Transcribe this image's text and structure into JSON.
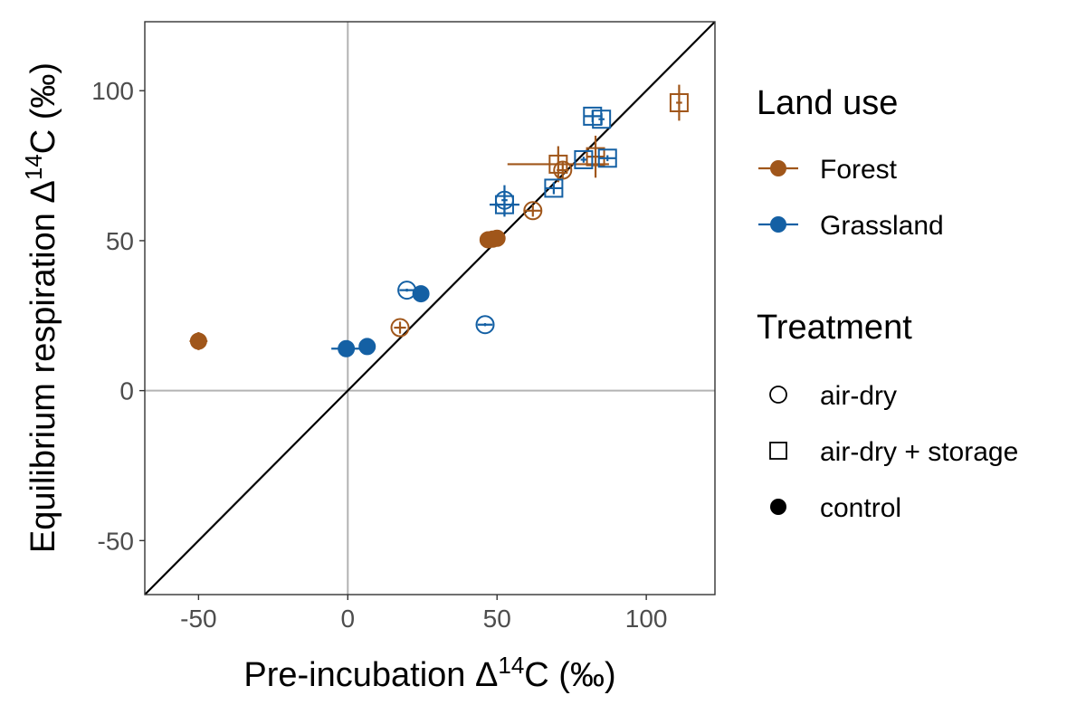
{
  "chart_data": {
    "type": "scatter",
    "xlabel": "Pre-incubation Δ14C (‰)",
    "ylabel": "Equilibrium respiration Δ14C (‰)",
    "xlabel_parts": {
      "pre": "Pre-incubation Δ",
      "sup": "14",
      "post": "C (‰)"
    },
    "ylabel_parts": {
      "pre": "Equilibrium respiration Δ",
      "sup": "14",
      "post": "C (‰)"
    },
    "xlim": [
      -68,
      123
    ],
    "ylim": [
      -68,
      123
    ],
    "x_ticks": [
      -50,
      0,
      50,
      100
    ],
    "y_ticks": [
      -50,
      0,
      50,
      100
    ],
    "x_tick_labels": [
      "-50",
      "0",
      "50",
      "100"
    ],
    "y_tick_labels": [
      "-50",
      "0",
      "50",
      "100"
    ],
    "reference_lines": [
      "x = 0",
      "y = 0",
      "y = x"
    ],
    "grid": false,
    "legend_position": "right",
    "legends": [
      {
        "title": "Land use",
        "entries": [
          {
            "label": "Forest",
            "color": "#a0561a"
          },
          {
            "label": "Grassland",
            "color": "#1460a4"
          }
        ]
      },
      {
        "title": "Treatment",
        "entries": [
          {
            "label": "air-dry",
            "shape": "circle"
          },
          {
            "label": "air-dry + storage",
            "shape": "square"
          },
          {
            "label": "control",
            "shape": "filled-circle"
          }
        ]
      }
    ],
    "colors": {
      "Forest": "#a0561a",
      "Grassland": "#1460a4",
      "reference": "#b3b3b3",
      "identity": "#000000"
    },
    "series": [
      {
        "land_use": "Forest",
        "treatment": "control",
        "points": [
          {
            "x": -50,
            "y": 16.5,
            "xerr": 3,
            "yerr": 3
          },
          {
            "x": 47,
            "y": 50.3,
            "xerr": 1,
            "yerr": 1
          },
          {
            "x": 48.5,
            "y": 50.5,
            "xerr": 1,
            "yerr": 1
          },
          {
            "x": 50,
            "y": 50.8,
            "xerr": 1,
            "yerr": 1
          }
        ]
      },
      {
        "land_use": "Forest",
        "treatment": "air-dry",
        "points": [
          {
            "x": 17.5,
            "y": 21,
            "xerr": 2,
            "yerr": 2
          },
          {
            "x": 62,
            "y": 60,
            "xerr": 3,
            "yerr": 2
          },
          {
            "x": 72,
            "y": 73.5,
            "xerr": 2,
            "yerr": 3
          }
        ]
      },
      {
        "land_use": "Forest",
        "treatment": "air-dry + storage",
        "points": [
          {
            "x": 70.5,
            "y": 75.5,
            "xerr": 17,
            "yerr": 6
          },
          {
            "x": 83,
            "y": 78,
            "xerr": 3,
            "yerr": 7
          },
          {
            "x": 111,
            "y": 96,
            "xerr": 1,
            "yerr": 6
          }
        ]
      },
      {
        "land_use": "Grassland",
        "treatment": "control",
        "points": [
          {
            "x": -0.5,
            "y": 14,
            "xerr": 5,
            "yerr": 0.5
          },
          {
            "x": 6.5,
            "y": 14.7,
            "xerr": 1,
            "yerr": 0.5
          },
          {
            "x": 24.5,
            "y": 32.3,
            "xerr": 1,
            "yerr": 0.5
          }
        ]
      },
      {
        "land_use": "Grassland",
        "treatment": "air-dry",
        "points": [
          {
            "x": 19.8,
            "y": 33.5,
            "xerr": 2.5,
            "yerr": 0.5
          },
          {
            "x": 46,
            "y": 22,
            "xerr": 2.5,
            "yerr": 0.5
          },
          {
            "x": 52.5,
            "y": 63.5,
            "xerr": 1,
            "yerr": 5
          }
        ]
      },
      {
        "land_use": "Grassland",
        "treatment": "air-dry + storage",
        "points": [
          {
            "x": 52.5,
            "y": 62,
            "xerr": 5,
            "yerr": 4
          },
          {
            "x": 69,
            "y": 67.5,
            "xerr": 3,
            "yerr": 2
          },
          {
            "x": 79,
            "y": 77,
            "xerr": 1,
            "yerr": 1
          },
          {
            "x": 82,
            "y": 91.5,
            "xerr": 3,
            "yerr": 2
          },
          {
            "x": 85,
            "y": 90.5,
            "xerr": 1,
            "yerr": 2
          },
          {
            "x": 87,
            "y": 77.5,
            "xerr": 3,
            "yerr": 1
          }
        ]
      }
    ]
  }
}
